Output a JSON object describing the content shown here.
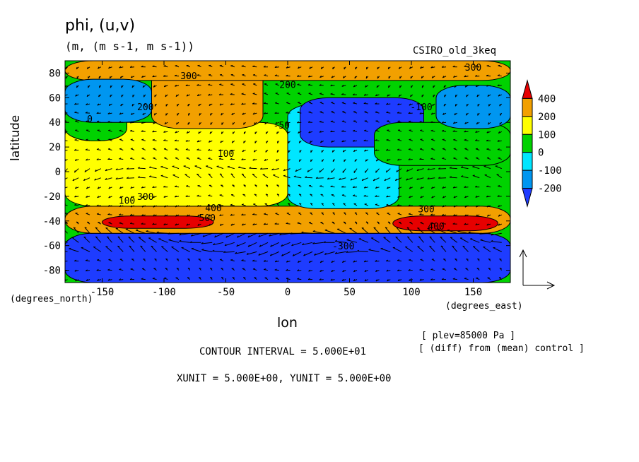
{
  "header": {
    "title": "phi, (u,v)",
    "units": "(m, (m s-1, m s-1))",
    "dataset": "CSIRO_old_3keq"
  },
  "footer": {
    "plev": "[ plev=85000 Pa ]",
    "diff": "[ (diff) from (mean) control ]",
    "contour_interval": "CONTOUR INTERVAL = 5.000E+01",
    "vector_units": "XUNIT = 5.000E+00, YUNIT = 5.000E+00"
  },
  "chart_data": {
    "type": "heatmap",
    "title": "phi, (u,v)",
    "subtitle": "(m, (m s-1, m s-1))",
    "xlabel": "lon",
    "xunit": "(degrees_east)",
    "ylabel": "latitude",
    "yunit": "(degrees_north)",
    "xlim": [
      -180,
      180
    ],
    "ylim": [
      -90,
      90
    ],
    "xticks": [
      -150,
      -100,
      -50,
      0,
      50,
      100,
      150
    ],
    "yticks": [
      80,
      60,
      40,
      20,
      0,
      -20,
      -40,
      -60,
      -80
    ],
    "colorbar": {
      "labels": [
        400,
        200,
        100,
        0,
        -100,
        -200
      ],
      "bands": [
        {
          "min": 400,
          "max": null,
          "color": "#e60000"
        },
        {
          "min": 200,
          "max": 400,
          "color": "#f2a000"
        },
        {
          "min": 100,
          "max": 200,
          "color": "#ffff00"
        },
        {
          "min": 0,
          "max": 100,
          "color": "#00d200"
        },
        {
          "min": -100,
          "max": 0,
          "color": "#00e6ff"
        },
        {
          "min": -200,
          "max": -100,
          "color": "#0096f0"
        },
        {
          "min": null,
          "max": -200,
          "color": "#1e3cff"
        }
      ]
    },
    "regions": [
      {
        "lon": [
          -180,
          180
        ],
        "lat": [
          -90,
          -50
        ],
        "value": -250
      },
      {
        "lon": [
          -180,
          180
        ],
        "lat": [
          -50,
          -28
        ],
        "value": 250
      },
      {
        "lon": [
          -150,
          -60
        ],
        "lat": [
          -46,
          -36
        ],
        "value": 500
      },
      {
        "lon": [
          85,
          170
        ],
        "lat": [
          -48,
          -36
        ],
        "value": 450
      },
      {
        "lon": [
          -180,
          0
        ],
        "lat": [
          -28,
          40
        ],
        "value": 150
      },
      {
        "lon": [
          -110,
          -20
        ],
        "lat": [
          35,
          90
        ],
        "value": 250
      },
      {
        "lon": [
          -180,
          180
        ],
        "lat": [
          74,
          90
        ],
        "value": 250
      },
      {
        "lon": [
          -180,
          -130
        ],
        "lat": [
          25,
          55
        ],
        "value": 50
      },
      {
        "lon": [
          -180,
          -110
        ],
        "lat": [
          40,
          75
        ],
        "value": -150
      },
      {
        "lon": [
          0,
          90
        ],
        "lat": [
          -30,
          55
        ],
        "value": -50
      },
      {
        "lon": [
          10,
          110
        ],
        "lat": [
          20,
          60
        ],
        "value": -250
      },
      {
        "lon": [
          70,
          180
        ],
        "lat": [
          5,
          40
        ],
        "value": 50
      },
      {
        "lon": [
          120,
          180
        ],
        "lat": [
          35,
          70
        ],
        "value": -150
      }
    ],
    "contour_labels": [
      {
        "lon": -80,
        "lat": 75,
        "text": "300"
      },
      {
        "lon": 0,
        "lat": 68,
        "text": "200"
      },
      {
        "lon": 150,
        "lat": 82,
        "text": "300"
      },
      {
        "lon": -115,
        "lat": 50,
        "text": "200"
      },
      {
        "lon": -160,
        "lat": 40,
        "text": "0"
      },
      {
        "lon": -5,
        "lat": 35,
        "text": "-50"
      },
      {
        "lon": 108,
        "lat": 50,
        "text": "-100"
      },
      {
        "lon": -50,
        "lat": 12,
        "text": "100"
      },
      {
        "lon": -115,
        "lat": -23,
        "text": "300"
      },
      {
        "lon": -130,
        "lat": -26,
        "text": "100"
      },
      {
        "lon": -60,
        "lat": -32,
        "text": "400"
      },
      {
        "lon": -65,
        "lat": -40,
        "text": "500"
      },
      {
        "lon": 112,
        "lat": -33,
        "text": "300"
      },
      {
        "lon": 120,
        "lat": -47,
        "text": "400"
      },
      {
        "lon": 45,
        "lat": -63,
        "text": "-300"
      }
    ],
    "vector_scale": {
      "xunit": 5.0,
      "yunit": 5.0
    }
  }
}
